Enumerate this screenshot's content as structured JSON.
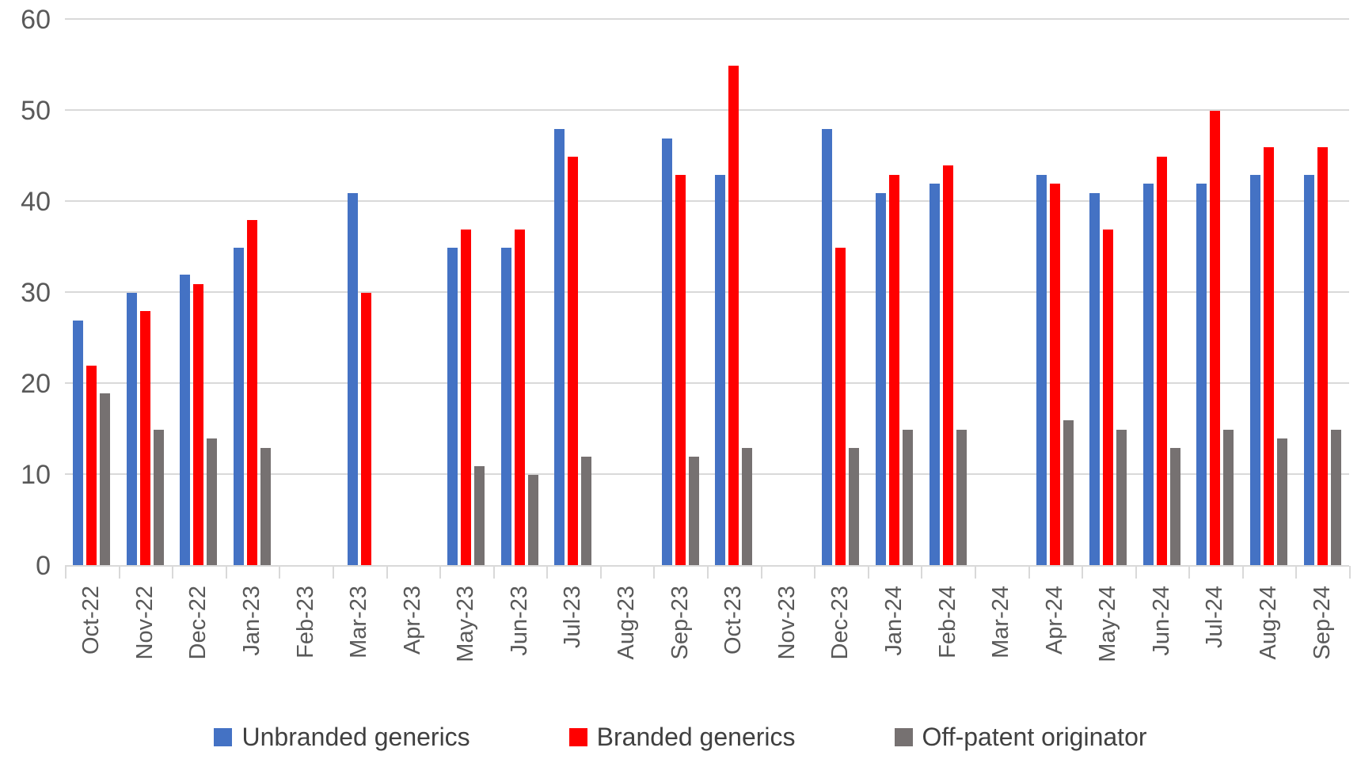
{
  "chart_data": {
    "type": "bar",
    "title": "",
    "xlabel": "",
    "ylabel": "",
    "ylim": [
      0,
      60
    ],
    "yticks": [
      0,
      10,
      20,
      30,
      40,
      50,
      60
    ],
    "grid": "horizontal",
    "legend_position": "bottom",
    "categories": [
      "Oct-22",
      "Nov-22",
      "Dec-22",
      "Jan-23",
      "Feb-23",
      "Mar-23",
      "Apr-23",
      "May-23",
      "Jun-23",
      "Jul-23",
      "Aug-23",
      "Sep-23",
      "Oct-23",
      "Nov-23",
      "Dec-23",
      "Jan-24",
      "Feb-24",
      "Mar-24",
      "Apr-24",
      "May-24",
      "Jun-24",
      "Jul-24",
      "Aug-24",
      "Sep-24"
    ],
    "series": [
      {
        "name": "Unbranded generics",
        "color": "#4472C4",
        "values": [
          27,
          30,
          32,
          35,
          null,
          41,
          null,
          35,
          35,
          48,
          null,
          47,
          43,
          null,
          48,
          41,
          42,
          null,
          43,
          41,
          42,
          42,
          43,
          43
        ]
      },
      {
        "name": "Branded generics",
        "color": "#FF0000",
        "values": [
          22,
          28,
          31,
          38,
          null,
          30,
          null,
          37,
          37,
          45,
          null,
          43,
          55,
          null,
          35,
          43,
          44,
          null,
          42,
          37,
          45,
          50,
          46,
          46
        ]
      },
      {
        "name": "Off-patent originator",
        "color": "#767171",
        "values": [
          19,
          15,
          14,
          13,
          null,
          null,
          null,
          11,
          10,
          12,
          null,
          12,
          13,
          null,
          13,
          15,
          15,
          null,
          16,
          15,
          13,
          15,
          14,
          15
        ]
      }
    ],
    "colors": {
      "gridline": "#d9d9d9",
      "axis": "#d9d9d9",
      "axis_label_text": "#595959",
      "legend_text": "#404040"
    }
  }
}
